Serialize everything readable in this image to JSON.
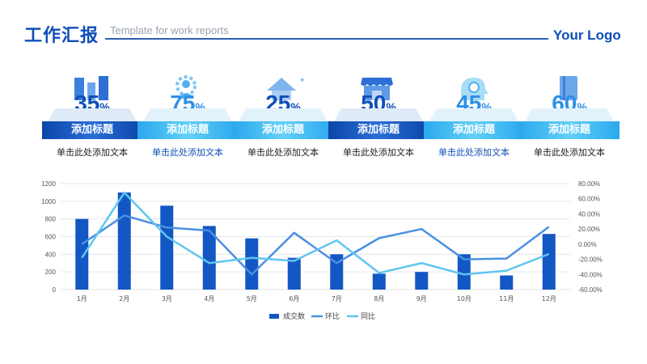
{
  "header": {
    "title": "工作汇报",
    "subtitle": "Template for work reports",
    "logo": "Your Logo"
  },
  "cards": [
    {
      "value": "35",
      "unit": "%",
      "label": "添加标题",
      "desc": "单击此处添加文本",
      "icon": "city-buildings-icon",
      "theme": "dark"
    },
    {
      "value": "75",
      "unit": "%",
      "label": "添加标题",
      "desc": "单击此处添加文本",
      "icon": "user-gear-icon",
      "theme": "light"
    },
    {
      "value": "25",
      "unit": "%",
      "label": "添加标题",
      "desc": "单击此处添加文本",
      "icon": "house-icon",
      "theme": "light"
    },
    {
      "value": "50",
      "unit": "%",
      "label": "添加标题",
      "desc": "单击此处添加文本",
      "icon": "storefront-icon",
      "theme": "dark"
    },
    {
      "value": "45",
      "unit": "%",
      "label": "添加标题",
      "desc": "单击此处添加文本",
      "icon": "idea-head-icon",
      "theme": "light"
    },
    {
      "value": "60",
      "unit": "%",
      "label": "添加标题",
      "desc": "单击此处添加文本",
      "icon": "notebook-icon",
      "theme": "light"
    }
  ],
  "colors": {
    "dark_blue": "#0f4fb6",
    "mid_blue": "#2f8fe8",
    "light_blue": "#45c7f2",
    "bar": "#1357c4",
    "ring_line": "#4a90e2",
    "yoy_line": "#5fc6ef"
  },
  "chart_data": {
    "type": "bar",
    "categories": [
      "1月",
      "2月",
      "3月",
      "4月",
      "5月",
      "6月",
      "7月",
      "8月",
      "9月",
      "10月",
      "11月",
      "12月"
    ],
    "series": [
      {
        "name": "成交数",
        "type": "bar",
        "axis": "left",
        "values": [
          800,
          1100,
          950,
          720,
          580,
          360,
          400,
          180,
          200,
          400,
          160,
          630
        ]
      },
      {
        "name": "环比",
        "type": "line",
        "axis": "right",
        "values": [
          0,
          38,
          22,
          18,
          -40,
          15,
          -25,
          8,
          20,
          -20,
          -19,
          23
        ]
      },
      {
        "name": "同比",
        "type": "line",
        "axis": "right",
        "values": [
          -18,
          68,
          10,
          -25,
          -18,
          -22,
          5,
          -38,
          -25,
          -40,
          -35,
          -13
        ]
      }
    ],
    "y_left": {
      "ylim": [
        0,
        1200
      ],
      "ticks": [
        "0",
        "200",
        "400",
        "600",
        "800",
        "1000",
        "1200"
      ]
    },
    "y_right": {
      "ylim": [
        -60,
        80
      ],
      "ticks": [
        "-60.00%",
        "-40.00%",
        "-20.00%",
        "0.00%",
        "20.00%",
        "40.00%",
        "60.00%",
        "80.00%"
      ]
    },
    "legend_position": "bottom",
    "grid": true
  }
}
